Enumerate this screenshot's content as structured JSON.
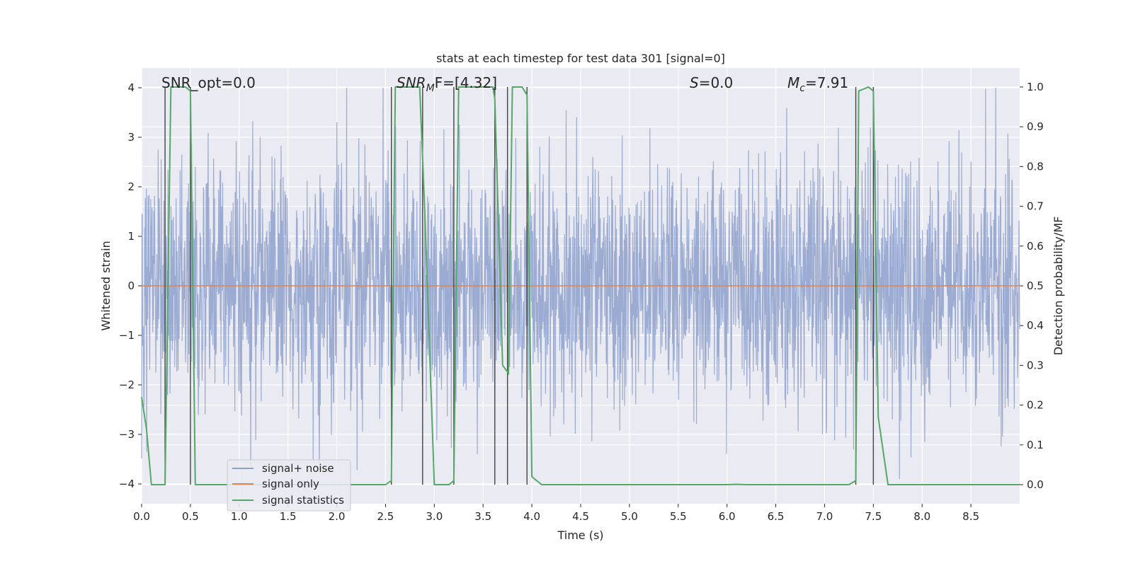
{
  "chart_data": {
    "type": "line",
    "title": "stats at each timestep for test data 301 [signal=0]",
    "xlabel": "Time (s)",
    "ylabel": "Whitened strain",
    "y2label": "Detection probability/MF",
    "xlim": [
      0,
      9
    ],
    "ylim": [
      -4.4,
      4.4
    ],
    "y2lim": [
      -0.048,
      1.048
    ],
    "xticks": [
      "0.0",
      "0.5",
      "1.0",
      "1.5",
      "2.0",
      "2.5",
      "3.0",
      "3.5",
      "4.0",
      "4.5",
      "5.0",
      "5.5",
      "6.0",
      "6.5",
      "7.0",
      "7.5",
      "8.0",
      "8.5"
    ],
    "yticks": [
      "4",
      "3",
      "2",
      "1",
      "0",
      "−1",
      "−2",
      "−3",
      "−4"
    ],
    "y2ticks": [
      "1.0",
      "0.9",
      "0.8",
      "0.7",
      "0.6",
      "0.5",
      "0.4",
      "0.3",
      "0.2",
      "0.1",
      "0.0"
    ],
    "legend": {
      "placement": "lower-left",
      "entries": [
        {
          "label": "signal+ noise",
          "color": "#8da0cb"
        },
        {
          "label": "signal only",
          "color": "#dd8452"
        },
        {
          "label": "signal statistics",
          "color": "#55a868"
        }
      ]
    },
    "annotations": {
      "snr_opt": "SNR_opt=0.0",
      "snr_mf_main": "SNR",
      "snr_mf_sub": "M",
      "snr_mf_rest": "F=[4.32]",
      "s_main": "S",
      "s_rest": "=0.0",
      "mc_main": "M",
      "mc_sub": "c",
      "mc_rest": "=7.91"
    },
    "series": [
      {
        "name": "signal+ noise",
        "description": "whitened strain noise, roughly ±1.8 envelope with spikes up to ±4",
        "amplitude": 1.2,
        "x_range": [
          0,
          9
        ]
      },
      {
        "name": "signal only",
        "x": [
          0,
          9
        ],
        "values": [
          0,
          0
        ]
      },
      {
        "name": "signal statistics",
        "x": [
          0.0,
          0.05,
          0.1,
          0.2,
          0.24,
          0.3,
          0.45,
          0.5,
          0.55,
          0.6,
          1.0,
          2.0,
          2.5,
          2.56,
          2.6,
          2.85,
          2.9,
          3.0,
          3.15,
          3.2,
          3.25,
          3.6,
          3.62,
          3.7,
          3.76,
          3.8,
          3.9,
          3.95,
          4.0,
          4.1,
          5.0,
          6.0,
          6.1,
          6.2,
          7.0,
          7.25,
          7.32,
          7.35,
          7.45,
          7.5,
          7.55,
          7.65,
          8.0,
          9.0
        ],
        "values": [
          0.22,
          0.14,
          0.0,
          0.0,
          0.0,
          1.0,
          1.0,
          0.99,
          0.0,
          0.0,
          0.0,
          0.0,
          0.0,
          0.01,
          1.0,
          1.0,
          0.7,
          0.0,
          0.0,
          0.01,
          1.0,
          1.0,
          0.97,
          0.3,
          0.28,
          1.0,
          1.0,
          0.98,
          0.02,
          0.0,
          0.0,
          0.0,
          0.001,
          0.0,
          0.0,
          0.0,
          0.01,
          0.99,
          1.0,
          0.99,
          0.17,
          0.0,
          0.0,
          0.0
        ]
      }
    ],
    "vlines_x": [
      0.24,
      0.5,
      2.56,
      2.88,
      3.2,
      3.62,
      3.75,
      3.95,
      7.32,
      7.5
    ]
  }
}
